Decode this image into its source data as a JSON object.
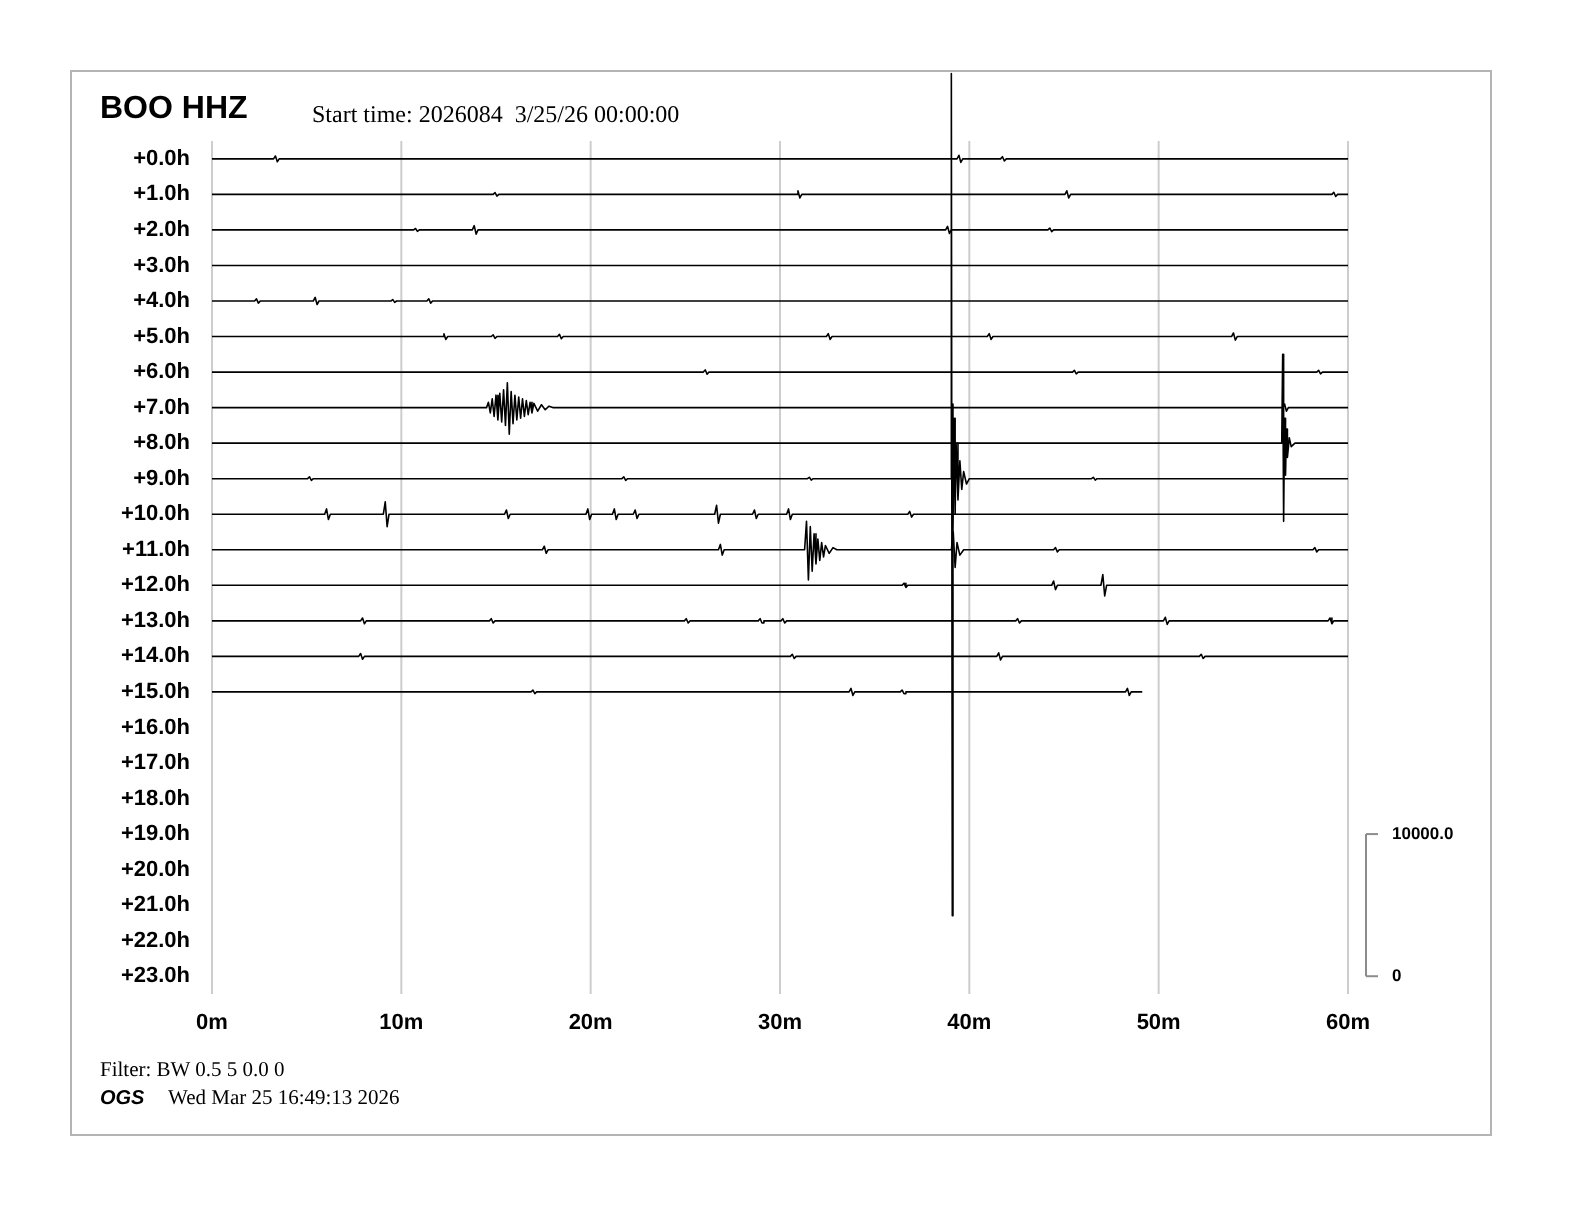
{
  "chart_data": {
    "type": "line",
    "title": "BOO HHZ",
    "subtitle": "Start time: 2026084  3/25/26 00:00:00",
    "annotations": [
      "Filter: BW 0.5 5 0.0 0",
      "OGS",
      "Wed Mar 25 16:49:13 2026"
    ],
    "xlim": [
      0,
      60
    ],
    "xticks": [
      {
        "value": 0,
        "label": "0m"
      },
      {
        "value": 10,
        "label": "10m"
      },
      {
        "value": 20,
        "label": "20m"
      },
      {
        "value": 30,
        "label": "30m"
      },
      {
        "value": 40,
        "label": "40m"
      },
      {
        "value": 50,
        "label": "50m"
      },
      {
        "value": 60,
        "label": "60m"
      }
    ],
    "ylim": [
      23.5,
      -2.5
    ],
    "yticks": [
      {
        "value": 0,
        "label": "+0.0h"
      },
      {
        "value": 1,
        "label": "+1.0h"
      },
      {
        "value": 2,
        "label": "+2.0h"
      },
      {
        "value": 3,
        "label": "+3.0h"
      },
      {
        "value": 4,
        "label": "+4.0h"
      },
      {
        "value": 5,
        "label": "+5.0h"
      },
      {
        "value": 6,
        "label": "+6.0h"
      },
      {
        "value": 7,
        "label": "+7.0h"
      },
      {
        "value": 8,
        "label": "+8.0h"
      },
      {
        "value": 9,
        "label": "+9.0h"
      },
      {
        "value": 10,
        "label": "+10.0h"
      },
      {
        "value": 11,
        "label": "+11.0h"
      },
      {
        "value": 12,
        "label": "+12.0h"
      },
      {
        "value": 13,
        "label": "+13.0h"
      },
      {
        "value": 14,
        "label": "+14.0h"
      },
      {
        "value": 15,
        "label": "+15.0h"
      },
      {
        "value": 16,
        "label": "+16.0h"
      },
      {
        "value": 17,
        "label": "+17.0h"
      },
      {
        "value": 18,
        "label": "+18.0h"
      },
      {
        "value": 19,
        "label": "+19.0h"
      },
      {
        "value": 20,
        "label": "+20.0h"
      },
      {
        "value": 21,
        "label": "+21.0h"
      },
      {
        "value": 22,
        "label": "+22.0h"
      },
      {
        "value": 23,
        "label": "+23.0h"
      }
    ],
    "y2lim": [
      -1250,
      63750
    ],
    "y2ticks": [
      {
        "value": 10000,
        "label": "10000.0"
      },
      0
    ],
    "grid": "x",
    "legend": false,
    "marker": "none",
    "series": [
      {
        "color": "#000000",
        "x": [
          0,
          3.25,
          3.35,
          3.45,
          3.55,
          39.35,
          39.45,
          39.55,
          39.65,
          41.65,
          41.75,
          41.85,
          41.95,
          60
        ],
        "values": [
          0,
          0,
          -0.08,
          0.08,
          0,
          0,
          -0.1,
          0.1,
          0,
          0,
          -0.06,
          0.06,
          0,
          0
        ]
      },
      {
        "color": "#000000",
        "x": [
          0,
          14.85,
          14.95,
          15.05,
          15.15,
          30.85,
          30.95,
          31.05,
          31.15,
          45.05,
          45.15,
          45.25,
          45.35,
          59.15,
          59.25,
          59.35,
          59.45,
          60
        ],
        "values": [
          1,
          1,
          0.95,
          1.05,
          1,
          1,
          0.9,
          1.1,
          1,
          1,
          0.9,
          1.1,
          1,
          1,
          0.94,
          1.06,
          1,
          1
        ]
      },
      {
        "color": "#000000",
        "x": [
          0,
          10.65,
          10.75,
          10.85,
          10.95,
          13.75,
          13.85,
          13.95,
          14.05,
          38.75,
          38.85,
          38.95,
          39.05,
          44.15,
          44.25,
          44.35,
          44.45,
          60
        ],
        "values": [
          2,
          2,
          1.96,
          2.04,
          2,
          2,
          1.88,
          2.12,
          2,
          2,
          1.9,
          2.1,
          2,
          2,
          1.95,
          2.05,
          2,
          2
        ]
      },
      {
        "color": "#000000",
        "x": [
          0,
          60
        ],
        "values": [
          3,
          3
        ]
      },
      {
        "color": "#000000",
        "x": [
          0,
          2.25,
          2.35,
          2.45,
          2.55,
          5.35,
          5.45,
          5.55,
          5.65,
          9.45,
          9.55,
          9.65,
          9.75,
          11.35,
          11.45,
          11.55,
          11.65,
          60
        ],
        "values": [
          4,
          4,
          3.94,
          4.06,
          4,
          4,
          3.9,
          4.1,
          4,
          4,
          3.96,
          4.04,
          4,
          4,
          3.94,
          4.06,
          4,
          4
        ]
      },
      {
        "color": "#000000",
        "x": [
          0,
          12.15,
          12.25,
          12.35,
          12.45,
          14.75,
          14.85,
          14.95,
          15.05,
          18.25,
          18.35,
          18.45,
          18.55,
          32.45,
          32.55,
          32.65,
          32.75,
          40.95,
          41.05,
          41.15,
          41.25,
          53.85,
          53.95,
          54.05,
          54.15,
          60
        ],
        "values": [
          5,
          5,
          4.92,
          5.08,
          5,
          5,
          4.95,
          5.05,
          5,
          5,
          4.94,
          5.06,
          5,
          5,
          4.92,
          5.08,
          5,
          5,
          4.92,
          5.08,
          5,
          5,
          4.9,
          5.1,
          5,
          5
        ]
      },
      {
        "color": "#000000",
        "x": [
          0,
          25.95,
          26.05,
          26.15,
          26.25,
          45.45,
          45.55,
          45.65,
          45.75,
          58.35,
          58.45,
          58.55,
          58.65,
          60
        ],
        "values": [
          6,
          6,
          5.94,
          6.06,
          6,
          6,
          5.95,
          6.05,
          6,
          6,
          5.95,
          6.05,
          6,
          6
        ]
      },
      {
        "color": "#000000",
        "x": [
          0,
          14.5,
          14.6,
          14.7,
          14.8,
          14.9,
          15.0,
          15.1,
          15.2,
          15.3,
          15.4,
          15.5,
          15.6,
          15.7,
          15.8,
          15.9,
          16.0,
          16.1,
          16.2,
          16.3,
          16.4,
          16.5,
          16.6,
          16.7,
          16.8,
          16.9,
          17.0,
          17.2,
          17.4,
          17.6,
          17.8,
          18.0,
          56.55,
          56.65,
          56.75,
          56.85,
          60
        ],
        "values": [
          7,
          7,
          6.85,
          7.15,
          6.75,
          7.25,
          6.65,
          7.35,
          6.6,
          7.4,
          6.5,
          7.5,
          6.3,
          7.75,
          6.55,
          7.45,
          6.65,
          7.35,
          6.7,
          7.3,
          6.75,
          7.25,
          6.8,
          7.2,
          6.85,
          7.15,
          6.88,
          7.1,
          6.92,
          7.06,
          6.96,
          7,
          7,
          6.9,
          7.1,
          7,
          7
        ]
      },
      {
        "color": "#000000",
        "x": [
          0,
          56.5,
          56.55,
          56.6,
          56.65,
          56.7,
          56.75,
          56.8,
          56.9,
          57.0,
          57.2,
          60
        ],
        "values": [
          8,
          8,
          5.5,
          10.2,
          7.3,
          8.9,
          7.6,
          8.4,
          7.85,
          8.1,
          8,
          8
        ]
      },
      {
        "color": "#000000",
        "x": [
          0,
          5.05,
          5.15,
          5.25,
          5.35,
          21.65,
          21.75,
          21.85,
          21.95,
          31.45,
          31.55,
          31.65,
          31.75,
          39.0,
          39.05,
          39.1,
          39.12,
          39.15,
          39.2,
          39.25,
          39.3,
          39.4,
          39.5,
          39.6,
          39.7,
          39.85,
          40.0,
          46.45,
          46.55,
          46.65,
          46.75,
          60
        ],
        "values": [
          9,
          9,
          8.95,
          9.05,
          9,
          9,
          8.95,
          9.05,
          9,
          9,
          8.96,
          9.04,
          9,
          9,
          -2.4,
          21.3,
          6.9,
          10.5,
          7.3,
          10,
          8,
          9.6,
          8.5,
          9.3,
          8.8,
          9.15,
          9,
          9,
          8.96,
          9.04,
          9,
          9
        ]
      },
      {
        "color": "#000000",
        "x": [
          0,
          5.95,
          6.05,
          6.15,
          6.25,
          9.05,
          9.15,
          9.25,
          9.35,
          15.45,
          15.55,
          15.65,
          15.75,
          19.75,
          19.85,
          19.95,
          20.05,
          21.15,
          21.25,
          21.35,
          21.45,
          22.25,
          22.35,
          22.45,
          22.55,
          26.55,
          26.65,
          26.75,
          26.85,
          28.55,
          28.65,
          28.75,
          28.85,
          30.35,
          30.45,
          30.55,
          30.65,
          36.75,
          36.85,
          36.95,
          37.05,
          60
        ],
        "values": [
          10,
          10,
          9.85,
          10.15,
          10,
          10,
          9.65,
          10.35,
          10,
          10,
          9.88,
          10.12,
          10,
          10,
          9.85,
          10.15,
          10,
          10,
          9.85,
          10.15,
          10,
          10,
          9.88,
          10.12,
          10,
          10,
          9.75,
          10.25,
          10,
          10,
          9.88,
          10.12,
          10,
          10,
          9.85,
          10.15,
          10,
          10,
          9.92,
          10.08,
          10,
          10
        ]
      },
      {
        "color": "#000000",
        "x": [
          0,
          17.45,
          17.55,
          17.65,
          17.75,
          26.75,
          26.85,
          26.95,
          27.05,
          31.3,
          31.4,
          31.5,
          31.6,
          31.7,
          31.8,
          31.9,
          32.0,
          32.1,
          32.2,
          32.3,
          32.4,
          32.6,
          32.8,
          33.0,
          39.05,
          39.15,
          39.25,
          39.35,
          39.5,
          39.7,
          44.45,
          44.55,
          44.65,
          44.75,
          58.15,
          58.25,
          58.35,
          58.45,
          60
        ],
        "values": [
          11,
          11,
          10.9,
          11.1,
          11,
          11,
          10.85,
          11.15,
          11,
          11,
          10.2,
          11.85,
          10.35,
          11.6,
          10.55,
          11.4,
          10.7,
          11.3,
          10.8,
          11.2,
          10.88,
          11.1,
          10.94,
          11,
          11,
          10.5,
          11.5,
          10.8,
          11.15,
          11,
          11,
          10.94,
          11.06,
          11,
          11,
          10.94,
          11.06,
          11,
          11
        ]
      },
      {
        "color": "#000000",
        "x": [
          0,
          36.45,
          36.55,
          36.65,
          36.75,
          44.35,
          44.45,
          44.55,
          44.65,
          46.95,
          47.05,
          47.15,
          47.25,
          60
        ],
        "values": [
          12,
          12,
          11.94,
          12.06,
          12,
          12,
          11.88,
          12.12,
          12,
          12,
          11.7,
          12.3,
          12,
          12
        ]
      },
      {
        "color": "#000000",
        "x": [
          0,
          7.85,
          7.95,
          8.05,
          8.15,
          14.65,
          14.75,
          14.85,
          14.95,
          24.95,
          25.05,
          25.15,
          25.25,
          28.85,
          28.95,
          29.05,
          29.15,
          30.05,
          30.15,
          30.25,
          30.35,
          42.45,
          42.55,
          42.65,
          42.75,
          50.25,
          50.35,
          50.45,
          50.55,
          58.95,
          59.05,
          59.15,
          59.25,
          60
        ],
        "values": [
          13,
          13,
          12.92,
          13.08,
          13,
          13,
          12.94,
          13.06,
          13,
          13,
          12.94,
          13.06,
          13,
          13,
          12.94,
          13.06,
          13,
          13,
          12.94,
          13.06,
          13,
          13,
          12.94,
          13.06,
          13,
          13,
          12.9,
          13.1,
          13,
          13,
          12.92,
          13.08,
          13,
          13
        ]
      },
      {
        "color": "#000000",
        "x": [
          0,
          7.75,
          7.85,
          7.95,
          8.05,
          30.55,
          30.65,
          30.75,
          30.85,
          41.45,
          41.55,
          41.65,
          41.75,
          52.15,
          52.25,
          52.35,
          52.45,
          60
        ],
        "values": [
          14,
          14,
          13.92,
          14.08,
          14,
          14,
          13.94,
          14.06,
          14,
          14,
          13.9,
          14.1,
          14,
          14,
          13.94,
          14.06,
          14,
          14
        ]
      },
      {
        "color": "#000000",
        "x": [
          0,
          16.85,
          16.95,
          17.05,
          17.15,
          33.65,
          33.75,
          33.85,
          33.95,
          36.35,
          36.45,
          36.55,
          36.65,
          48.25,
          48.35,
          48.45,
          48.55,
          49.1
        ],
        "values": [
          15,
          15,
          14.95,
          15.05,
          15,
          15,
          14.9,
          15.1,
          15,
          15,
          14.95,
          15.05,
          15,
          15,
          14.9,
          15.1,
          15,
          15
        ]
      }
    ]
  }
}
